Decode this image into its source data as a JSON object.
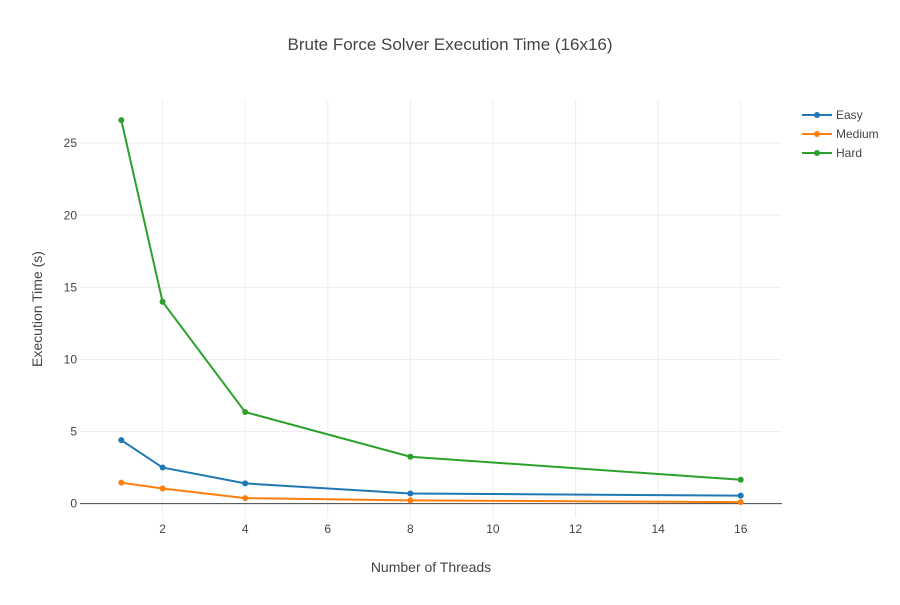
{
  "chart_data": {
    "type": "line",
    "title": "Brute Force Solver Execution Time (16x16)",
    "xlabel": "Number of Threads",
    "ylabel": "Execution Time (s)",
    "xlim": [
      0,
      17
    ],
    "ylim": [
      -1,
      28
    ],
    "xticks": [
      2,
      4,
      6,
      8,
      10,
      12,
      14,
      16
    ],
    "yticks": [
      0,
      5,
      10,
      15,
      20,
      25
    ],
    "grid": true,
    "legend_position": "top-right",
    "x": [
      1,
      2,
      4,
      8,
      16
    ],
    "series": [
      {
        "name": "Easy",
        "color": "#1f77b4",
        "values": [
          4.4,
          2.5,
          1.4,
          0.7,
          0.55
        ]
      },
      {
        "name": "Medium",
        "color": "#ff7f0e",
        "values": [
          1.45,
          1.05,
          0.38,
          0.22,
          0.1
        ]
      },
      {
        "name": "Hard",
        "color": "#2ca02c",
        "values": [
          26.6,
          14.0,
          6.35,
          3.25,
          1.65
        ]
      }
    ]
  }
}
